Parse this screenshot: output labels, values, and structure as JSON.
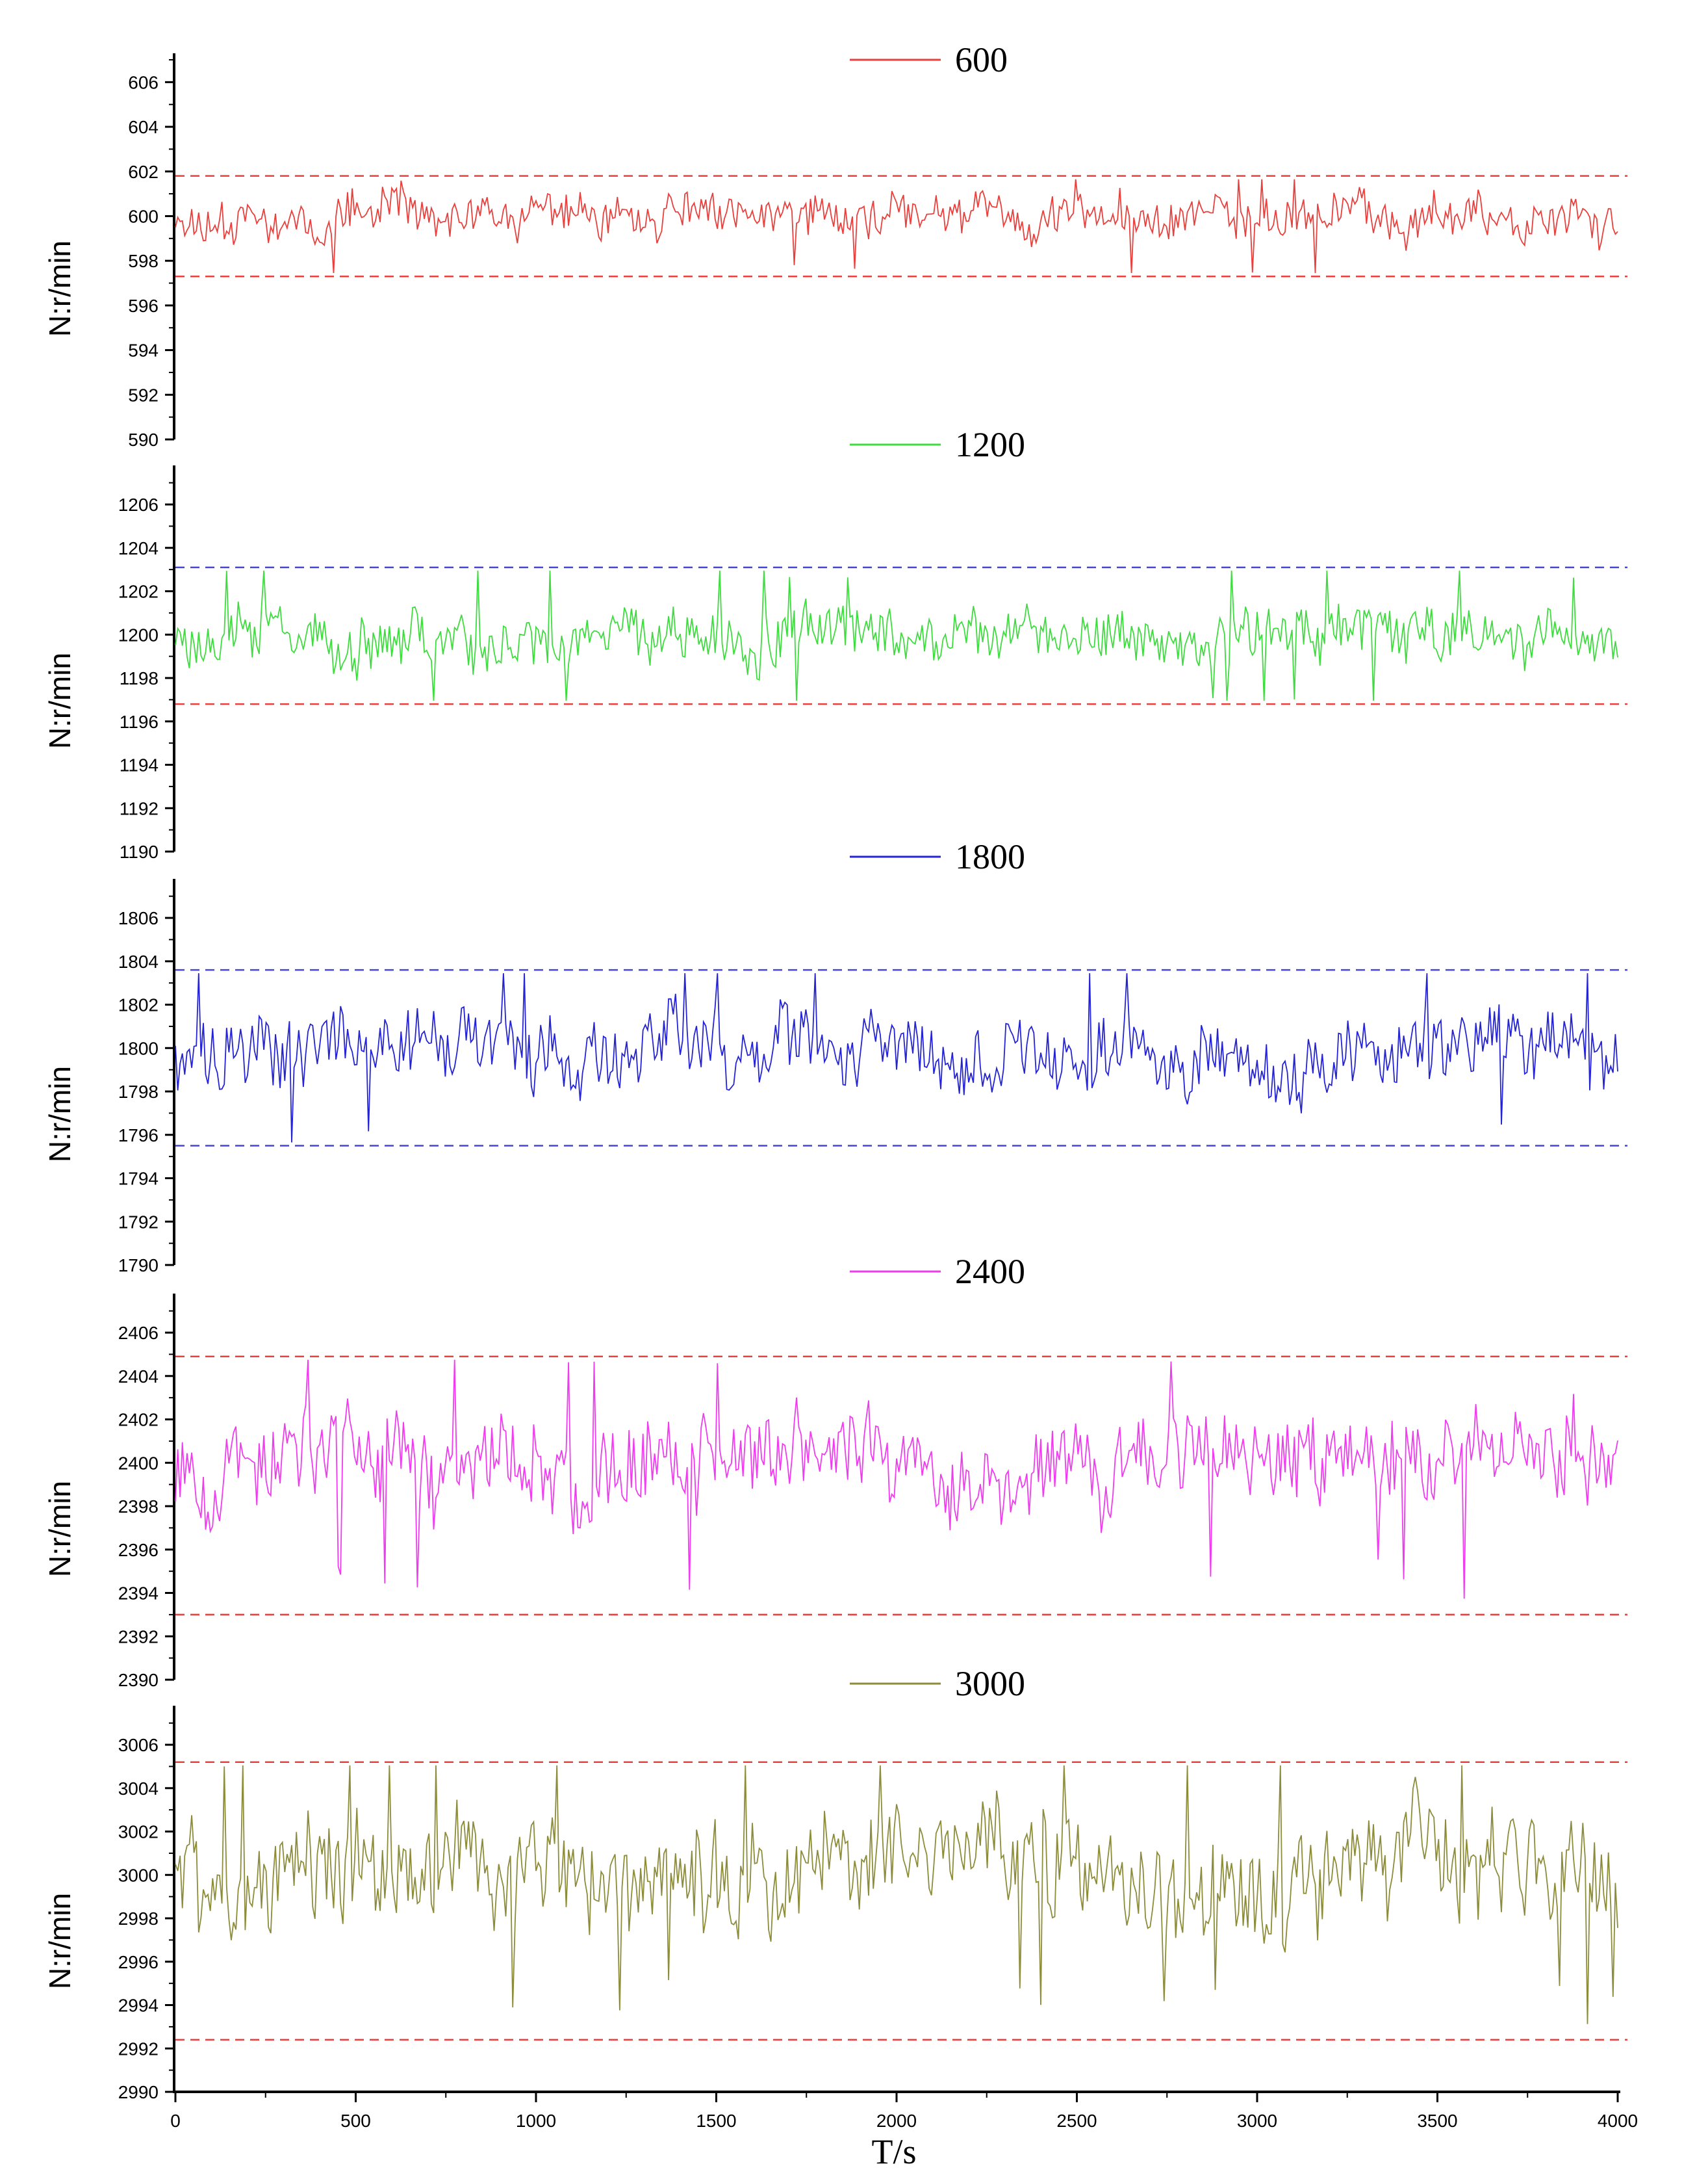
{
  "chart_data": {
    "type": "line",
    "xlabel": "T/s",
    "xlim": [
      0,
      4000
    ],
    "xticks": [
      0,
      500,
      1000,
      1500,
      2000,
      2500,
      3000,
      3500,
      4000
    ],
    "grid": false,
    "panels": [
      {
        "name": "600",
        "color": "#e8403c",
        "ylabel": "N:r/min",
        "ylim": [
          590,
          607
        ],
        "yticks": [
          590,
          592,
          594,
          596,
          598,
          600,
          602,
          604,
          606
        ],
        "nominal": 600,
        "amplitude": 1.2,
        "bounds": [
          {
            "value": 601.8,
            "color": "#e8403c"
          },
          {
            "value": 597.3,
            "color": "#e8403c"
          }
        ],
        "seed": 11
      },
      {
        "name": "1200",
        "color": "#3fdc3f",
        "ylabel": "N:r/min",
        "ylim": [
          1190,
          1207.5
        ],
        "yticks": [
          1190,
          1192,
          1194,
          1196,
          1198,
          1200,
          1202,
          1204,
          1206
        ],
        "nominal": 1200,
        "amplitude": 1.6,
        "bounds": [
          {
            "value": 1203.1,
            "color": "#4646d8"
          },
          {
            "value": 1196.8,
            "color": "#e8403c"
          }
        ],
        "seed": 23
      },
      {
        "name": "1800",
        "color": "#2424d4",
        "ylabel": "N:r/min",
        "ylim": [
          1790,
          1807.5
        ],
        "yticks": [
          1790,
          1792,
          1794,
          1796,
          1798,
          1800,
          1802,
          1804,
          1806
        ],
        "nominal": 1800,
        "amplitude": 2.1,
        "bounds": [
          {
            "value": 1803.6,
            "color": "#4646d8"
          },
          {
            "value": 1795.5,
            "color": "#4646d8"
          }
        ],
        "seed": 37
      },
      {
        "name": "2400",
        "color": "#ee3cee",
        "ylabel": "N:r/min",
        "ylim": [
          2390,
          2407.5
        ],
        "yticks": [
          2390,
          2392,
          2394,
          2396,
          2398,
          2400,
          2402,
          2404,
          2406
        ],
        "nominal": 2400,
        "amplitude": 2.7,
        "bounds": [
          {
            "value": 2404.9,
            "color": "#e8403c"
          },
          {
            "value": 2393.0,
            "color": "#e8403c"
          }
        ],
        "seed": 53
      },
      {
        "name": "3000",
        "color": "#8c8c3a",
        "ylabel": "N:r/min",
        "ylim": [
          2990,
          3007.5
        ],
        "yticks": [
          2990,
          2992,
          2994,
          2996,
          2998,
          3000,
          3002,
          3004,
          3006
        ],
        "nominal": 3000,
        "amplitude": 3.0,
        "bounds": [
          {
            "value": 3005.2,
            "color": "#e8403c"
          },
          {
            "value": 2992.4,
            "color": "#e8403c"
          }
        ],
        "seed": 71
      }
    ]
  }
}
